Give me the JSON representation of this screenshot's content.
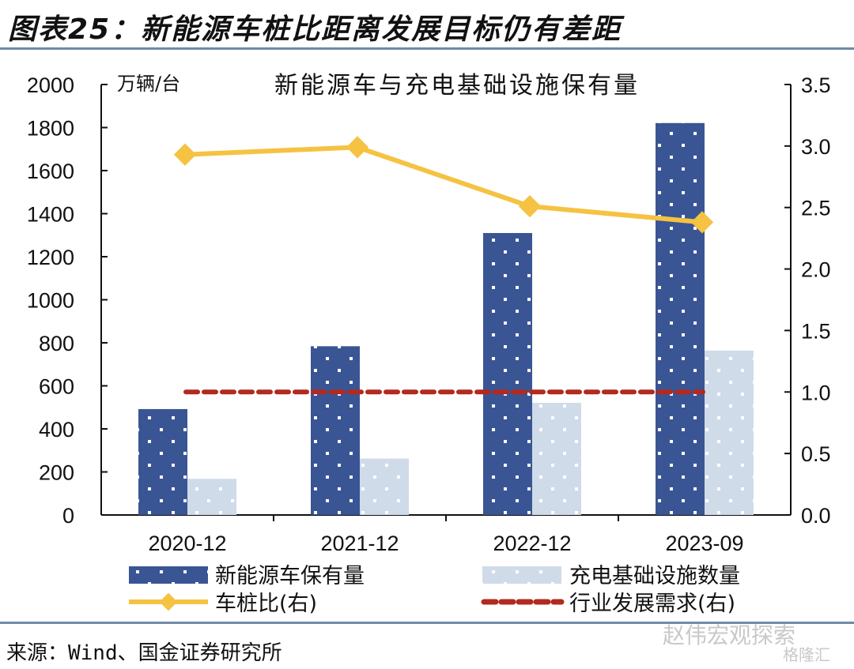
{
  "figure_title": "图表25：新能源车桩比距离发展目标仍有差距",
  "source": "来源：Wind、国金证券研究所",
  "watermark": {
    "wechat": "赵伟宏观探索",
    "brand": "格隆汇"
  },
  "colors": {
    "ev_bar": "#3a5594",
    "charger_bar": "#cfdbe9",
    "ratio_line": "#f5c242",
    "target_line": "#b22a1f",
    "rule": "#6f8aa8"
  },
  "chart_data": {
    "type": "bar",
    "title": "新能源车与充电基础设施保有量",
    "ylabel_left": "万辆/台",
    "categories": [
      "2020-12",
      "2021-12",
      "2022-12",
      "2023-09"
    ],
    "y_left": {
      "min": 0,
      "max": 2000,
      "ticks": [
        "0",
        "200",
        "400",
        "600",
        "800",
        "1000",
        "1200",
        "1400",
        "1600",
        "1800",
        "2000"
      ]
    },
    "y_right": {
      "min": 0,
      "max": 3.5,
      "ticks": [
        "0.0",
        "0.5",
        "1.0",
        "1.5",
        "2.0",
        "2.5",
        "3.0",
        "3.5"
      ]
    },
    "grid": false,
    "legend_placement": "bottom",
    "series": [
      {
        "name": "新能源车保有量",
        "type": "bar",
        "axis": "left",
        "values": [
          492,
          784,
          1310,
          1821
        ]
      },
      {
        "name": "充电基础设施数量",
        "type": "bar",
        "axis": "left",
        "values": [
          168,
          262,
          521,
          764
        ]
      },
      {
        "name": "车桩比(右)",
        "type": "line",
        "axis": "right",
        "values": [
          2.93,
          2.99,
          2.51,
          2.38
        ]
      },
      {
        "name": "行业发展需求(右)",
        "type": "dashed-line",
        "axis": "right",
        "values": [
          1.0,
          1.0,
          1.0,
          1.0
        ]
      }
    ]
  }
}
